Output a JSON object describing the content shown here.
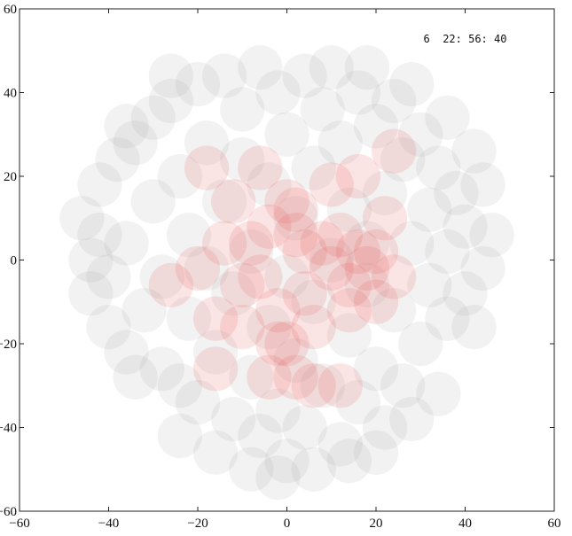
{
  "chart_data": {
    "type": "scatter",
    "title": "",
    "xlabel": "",
    "ylabel": "",
    "xlim": [
      -60,
      60
    ],
    "ylim": [
      -60,
      60
    ],
    "grid": false,
    "x_ticks": [
      -60,
      -40,
      -20,
      0,
      20,
      40,
      60
    ],
    "y_ticks": [
      -60,
      -40,
      -20,
      0,
      20,
      40,
      60
    ],
    "annotation": "6  22: 56: 40",
    "marker_shape": "translucent disc",
    "marker_radius": 5,
    "series": [
      {
        "color": "#9a9a9a",
        "points": [
          [
            -46,
            10
          ],
          [
            -44,
            0
          ],
          [
            -44,
            -8
          ],
          [
            -42,
            18
          ],
          [
            -40,
            -16
          ],
          [
            -38,
            24
          ],
          [
            -36,
            4
          ],
          [
            -36,
            -22
          ],
          [
            -34,
            28
          ],
          [
            -32,
            -12
          ],
          [
            -30,
            34
          ],
          [
            -30,
            14
          ],
          [
            -28,
            -26
          ],
          [
            -28,
            -4
          ],
          [
            -26,
            38
          ],
          [
            -24,
            20
          ],
          [
            -24,
            -30
          ],
          [
            -22,
            6
          ],
          [
            -22,
            -14
          ],
          [
            -20,
            42
          ],
          [
            -20,
            -34
          ],
          [
            -18,
            28
          ],
          [
            -18,
            -2
          ],
          [
            -16,
            -22
          ],
          [
            -14,
            44
          ],
          [
            -14,
            14
          ],
          [
            -12,
            -38
          ],
          [
            -12,
            -8
          ],
          [
            -10,
            36
          ],
          [
            -10,
            24
          ],
          [
            -8,
            -28
          ],
          [
            -8,
            2
          ],
          [
            -6,
            46
          ],
          [
            -6,
            -42
          ],
          [
            -4,
            18
          ],
          [
            -4,
            -16
          ],
          [
            -2,
            40
          ],
          [
            -2,
            -36
          ],
          [
            0,
            30
          ],
          [
            0,
            -4
          ],
          [
            0,
            -48
          ],
          [
            2,
            10
          ],
          [
            2,
            -24
          ],
          [
            4,
            44
          ],
          [
            4,
            -40
          ],
          [
            6,
            22
          ],
          [
            6,
            -10
          ],
          [
            8,
            36
          ],
          [
            8,
            -30
          ],
          [
            10,
            0
          ],
          [
            10,
            46
          ],
          [
            12,
            -44
          ],
          [
            12,
            28
          ],
          [
            14,
            -18
          ],
          [
            14,
            12
          ],
          [
            16,
            40
          ],
          [
            16,
            -34
          ],
          [
            18,
            4
          ],
          [
            18,
            -6
          ],
          [
            20,
            32
          ],
          [
            20,
            -26
          ],
          [
            22,
            16
          ],
          [
            22,
            -40
          ],
          [
            24,
            38
          ],
          [
            24,
            -12
          ],
          [
            26,
            24
          ],
          [
            26,
            -30
          ],
          [
            28,
            4
          ],
          [
            30,
            30
          ],
          [
            30,
            -20
          ],
          [
            32,
            12
          ],
          [
            32,
            -6
          ],
          [
            34,
            22
          ],
          [
            36,
            -14
          ],
          [
            36,
            2
          ],
          [
            38,
            16
          ],
          [
            40,
            -8
          ],
          [
            40,
            8
          ],
          [
            42,
            26
          ],
          [
            44,
            -2
          ],
          [
            44,
            18
          ],
          [
            46,
            6
          ],
          [
            -8,
            -50
          ],
          [
            -2,
            -52
          ],
          [
            6,
            -50
          ],
          [
            14,
            -48
          ],
          [
            20,
            -46
          ],
          [
            -16,
            -46
          ],
          [
            -24,
            -42
          ],
          [
            28,
            -38
          ],
          [
            34,
            -32
          ],
          [
            -34,
            -28
          ],
          [
            -40,
            -4
          ],
          [
            42,
            -16
          ],
          [
            -42,
            6
          ],
          [
            -26,
            44
          ],
          [
            18,
            46
          ],
          [
            28,
            42
          ],
          [
            36,
            34
          ],
          [
            -36,
            32
          ]
        ]
      },
      {
        "color": "#e85a5a",
        "points": [
          [
            -18,
            22
          ],
          [
            -12,
            14
          ],
          [
            -10,
            -6
          ],
          [
            -6,
            22
          ],
          [
            -4,
            8
          ],
          [
            -2,
            -12
          ],
          [
            0,
            14
          ],
          [
            2,
            12
          ],
          [
            4,
            2
          ],
          [
            4,
            -8
          ],
          [
            6,
            -16
          ],
          [
            8,
            4
          ],
          [
            10,
            18
          ],
          [
            12,
            6
          ],
          [
            14,
            -12
          ],
          [
            16,
            2
          ],
          [
            18,
            -2
          ],
          [
            20,
            2
          ],
          [
            22,
            10
          ],
          [
            24,
            26
          ],
          [
            -26,
            -6
          ],
          [
            -20,
            -2
          ],
          [
            -16,
            -14
          ],
          [
            -16,
            -26
          ],
          [
            -8,
            4
          ],
          [
            -6,
            -4
          ],
          [
            -2,
            -20
          ],
          [
            0,
            -20
          ],
          [
            2,
            -28
          ],
          [
            6,
            -30
          ],
          [
            12,
            -30
          ],
          [
            14,
            -6
          ],
          [
            20,
            -10
          ],
          [
            24,
            -4
          ],
          [
            -14,
            4
          ],
          [
            -4,
            -28
          ],
          [
            10,
            -2
          ],
          [
            2,
            6
          ],
          [
            -10,
            -16
          ],
          [
            16,
            20
          ]
        ]
      }
    ]
  }
}
